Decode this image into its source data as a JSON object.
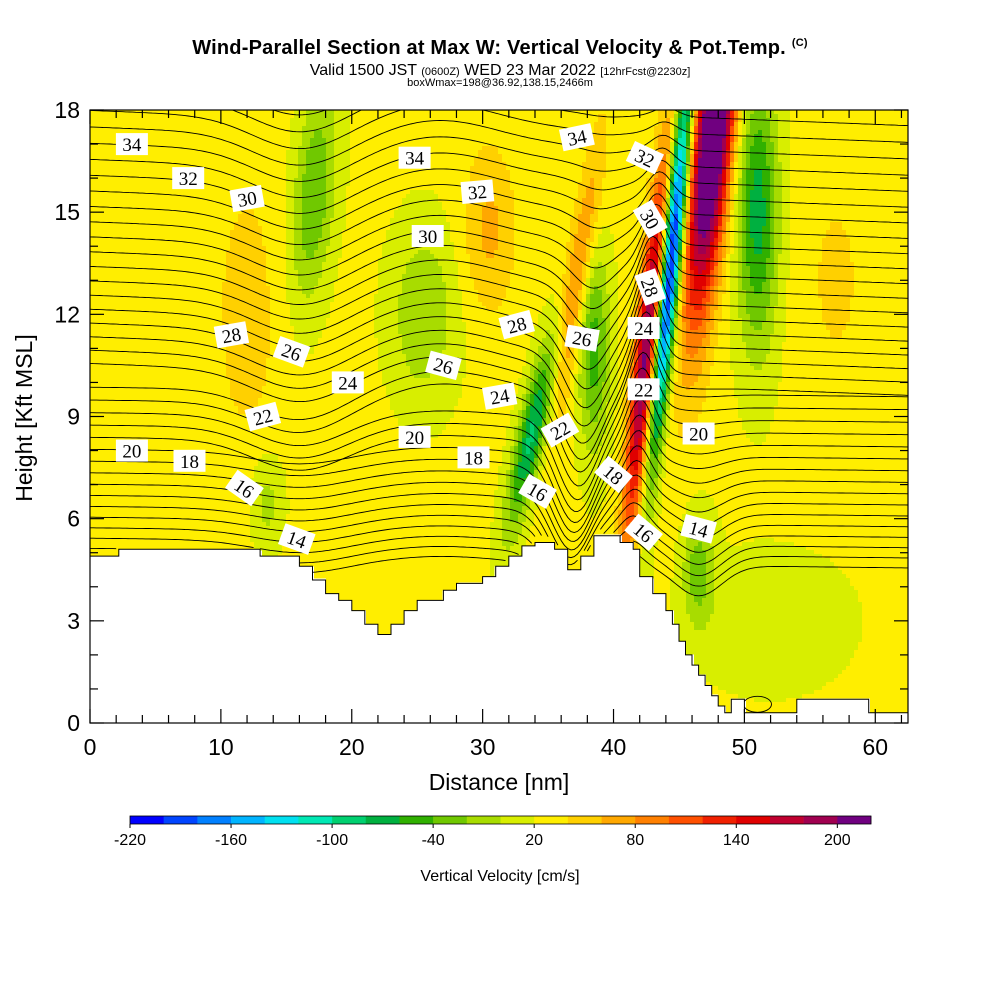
{
  "title": {
    "main": "Wind-Parallel Section at Max W: Vertical Velocity & Pot.Temp.",
    "copyright": "(C)",
    "valid_prefix": "Valid 1500 JST",
    "valid_utc": "(0600Z)",
    "valid_date": "WED 23 Mar 2022",
    "forecast": "[12hrFcst@2230z]",
    "box_info": "boxWmax=198@36.92,138.15,2466m"
  },
  "chart_data": {
    "type": "heatmap",
    "xlabel": "Distance [nm]",
    "ylabel": "Height [Kft MSL]",
    "xlim": [
      0,
      62.5
    ],
    "ylim": [
      0,
      18
    ],
    "x_ticks": [
      "0",
      "10",
      "20",
      "30",
      "40",
      "50",
      "60"
    ],
    "y_ticks": [
      "0",
      "3",
      "6",
      "9",
      "12",
      "15",
      "18"
    ],
    "colorbar": {
      "title": "Vertical Velocity [cm/s]",
      "labels": [
        "-220",
        "-160",
        "-100",
        "-40",
        "20",
        "80",
        "140",
        "200"
      ],
      "levels": [
        -220,
        -200,
        -180,
        -160,
        -140,
        -120,
        -100,
        -80,
        -60,
        -40,
        -20,
        0,
        20,
        40,
        60,
        80,
        100,
        120,
        140,
        160,
        180,
        200,
        220
      ],
      "colors": [
        "#0000ff",
        "#0044ff",
        "#0080ff",
        "#00b4ff",
        "#00e0f0",
        "#00e8b4",
        "#00d070",
        "#00b040",
        "#30b000",
        "#70c800",
        "#a8dc00",
        "#d8ee00",
        "#ffee00",
        "#ffd000",
        "#ffa800",
        "#ff8000",
        "#ff5000",
        "#f02000",
        "#e00000",
        "#c00030",
        "#a00050",
        "#700080"
      ]
    },
    "contour_labels": [
      {
        "text": "34",
        "x": 3.2,
        "y": 17.0,
        "rot": 0
      },
      {
        "text": "32",
        "x": 7.5,
        "y": 16.0,
        "rot": 0
      },
      {
        "text": "30",
        "x": 12.0,
        "y": 15.4,
        "rot": -10
      },
      {
        "text": "34",
        "x": 24.8,
        "y": 16.6,
        "rot": 0
      },
      {
        "text": "32",
        "x": 29.6,
        "y": 15.6,
        "rot": -5
      },
      {
        "text": "30",
        "x": 25.8,
        "y": 14.3,
        "rot": 0
      },
      {
        "text": "34",
        "x": 37.2,
        "y": 17.2,
        "rot": -12
      },
      {
        "text": "32",
        "x": 42.4,
        "y": 16.6,
        "rot": 25
      },
      {
        "text": "30",
        "x": 42.8,
        "y": 14.8,
        "rot": 60
      },
      {
        "text": "28",
        "x": 42.8,
        "y": 12.8,
        "rot": 70
      },
      {
        "text": "24",
        "x": 42.3,
        "y": 11.6,
        "rot": 0
      },
      {
        "text": "22",
        "x": 42.3,
        "y": 9.8,
        "rot": 0
      },
      {
        "text": "28",
        "x": 10.8,
        "y": 11.4,
        "rot": -10
      },
      {
        "text": "26",
        "x": 15.4,
        "y": 10.9,
        "rot": 20
      },
      {
        "text": "24",
        "x": 19.7,
        "y": 10.0,
        "rot": 0
      },
      {
        "text": "26",
        "x": 27.0,
        "y": 10.5,
        "rot": 15
      },
      {
        "text": "28",
        "x": 32.6,
        "y": 11.7,
        "rot": -15
      },
      {
        "text": "26",
        "x": 37.6,
        "y": 11.3,
        "rot": 10
      },
      {
        "text": "24",
        "x": 31.3,
        "y": 9.6,
        "rot": -10
      },
      {
        "text": "22",
        "x": 35.9,
        "y": 8.6,
        "rot": -30
      },
      {
        "text": "22",
        "x": 13.2,
        "y": 9.0,
        "rot": -15
      },
      {
        "text": "20",
        "x": 3.2,
        "y": 8.0,
        "rot": 0
      },
      {
        "text": "18",
        "x": 7.6,
        "y": 7.7,
        "rot": 0
      },
      {
        "text": "16",
        "x": 11.8,
        "y": 6.9,
        "rot": 35
      },
      {
        "text": "14",
        "x": 15.8,
        "y": 5.4,
        "rot": 20
      },
      {
        "text": "20",
        "x": 24.8,
        "y": 8.4,
        "rot": 0
      },
      {
        "text": "18",
        "x": 29.3,
        "y": 7.8,
        "rot": 0
      },
      {
        "text": "16",
        "x": 34.2,
        "y": 6.8,
        "rot": 30
      },
      {
        "text": "18",
        "x": 40.0,
        "y": 7.3,
        "rot": 40
      },
      {
        "text": "16",
        "x": 42.3,
        "y": 5.6,
        "rot": 40
      },
      {
        "text": "20",
        "x": 46.5,
        "y": 8.5,
        "rot": 0
      },
      {
        "text": "14",
        "x": 46.5,
        "y": 5.7,
        "rot": 15
      }
    ]
  }
}
